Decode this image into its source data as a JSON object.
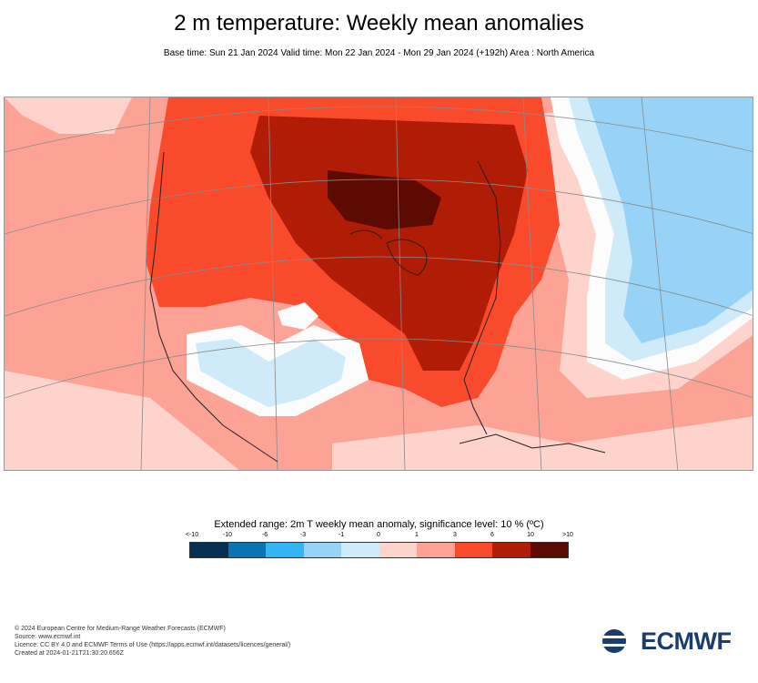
{
  "title": "2 m temperature: Weekly mean anomalies",
  "subtitle": "Base time: Sun 21 Jan 2024 Valid time: Mon 22 Jan 2024 - Mon 29 Jan 2024 (+192h) Area : North America",
  "map": {
    "region": "North America",
    "anomaly_palette": {
      "lt_-10": "#053052",
      "-10_-6": "#0a73b3",
      "-6_-3": "#35b4f5",
      "-3_-1": "#96d3f7",
      "-1_0": "#cfeaf9",
      "0_1": "#fdd3cc",
      "1_3": "#fca396",
      "3_6": "#f94a2c",
      "6_10": "#b01c06",
      "gt_10": "#5d0b02"
    }
  },
  "legend": {
    "title": "Extended range: 2m T weekly mean anomaly, significance level: 10 % (ºC)",
    "tick_labels": [
      "<-10",
      "-10",
      "-6",
      "-3",
      "-1",
      "0",
      "1",
      "3",
      "6",
      "10",
      ">10"
    ],
    "colors": [
      "#053052",
      "#0a73b3",
      "#35b4f5",
      "#96d3f7",
      "#cfeaf9",
      "#fdd3cc",
      "#fca396",
      "#f94a2c",
      "#b01c06",
      "#5d0b02"
    ]
  },
  "footer": {
    "line1": "© 2024 European Centre for Medium-Range Weather Forecasts (ECMWF)",
    "line2": "Source: www.ecmwf.int",
    "line3": "Licence: CC BY 4.0 and ECMWF Terms of Use (https://apps.ecmwf.int/datasets/licences/general/)",
    "line4": "Created at 2024-01-21T21:30:20.656Z"
  },
  "logo": {
    "text": "ECMWF",
    "color": "#1a3d6d"
  }
}
